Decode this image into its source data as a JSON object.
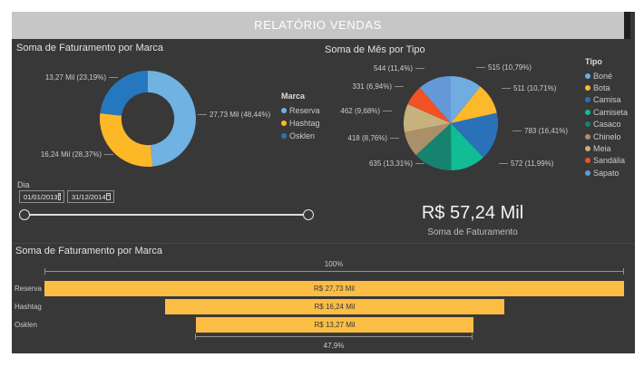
{
  "header": {
    "title": "RELATÓRIO VENDAS"
  },
  "panels": {
    "donut_title": "Soma de Faturamento por Marca",
    "pie_title": "Soma de Mês por Tipo",
    "funnel_title": "Soma de Faturamento por Marca"
  },
  "slicer": {
    "label": "Dia",
    "start_date": "01/01/2013",
    "end_date": "31/12/2014"
  },
  "card": {
    "value": "R$ 57,24 Mil",
    "label": "Soma de Faturamento"
  },
  "funnel_panel": {
    "title": "Soma de Faturamento por Marca",
    "top_percent": "100%",
    "bottom_percent": "47,9%",
    "bars": [
      {
        "label": "Reserva",
        "value": 27.73,
        "value_label": "R$ 27,73 Mil"
      },
      {
        "label": "Hashtag",
        "value": 16.24,
        "value_label": "R$ 16,24 Mil"
      },
      {
        "label": "Osklen",
        "value": 13.27,
        "value_label": "R$ 13,27 Mil"
      }
    ]
  },
  "chart_data": [
    {
      "type": "pie",
      "subtype": "donut",
      "title": "Soma de Faturamento por Marca",
      "legend_title": "Marca",
      "legend_position": "right",
      "categories": [
        "Reserva",
        "Hashtag",
        "Osklen"
      ],
      "values": [
        27.73,
        16.24,
        13.27
      ],
      "value_unit": "Mil (R$)",
      "percents": [
        48.44,
        28.37,
        23.19
      ],
      "labels": [
        "27,73 Mil (48,44%)",
        "16,24 Mil (28,37%)",
        "13,27 Mil (23,19%)"
      ],
      "colors": [
        "#70B2E2",
        "#FCB826",
        "#2678BE"
      ]
    },
    {
      "type": "pie",
      "title": "Soma de Mês por Tipo",
      "legend_title": "Tipo",
      "legend_position": "right",
      "categories": [
        "Boné",
        "Bota",
        "Camisa",
        "Camiseta",
        "Casaco",
        "Chinelo",
        "Meia",
        "Sandália",
        "Sapato"
      ],
      "values": [
        515,
        511,
        783,
        572,
        635,
        418,
        462,
        331,
        544
      ],
      "percents": [
        10.79,
        10.71,
        16.41,
        11.99,
        13.31,
        8.76,
        9.68,
        6.94,
        11.4
      ],
      "labels": [
        "515 (10,79%)",
        "511 (10,71%)",
        "783 (16,41%)",
        "572 (11,99%)",
        "635 (13,31%)",
        "418 (8,76%)",
        "462 (9,68%)",
        "331 (6,94%)",
        "544 (11,4%)"
      ],
      "colors": [
        "#6FACDF",
        "#FCB92C",
        "#2A71BA",
        "#10BD95",
        "#15836D",
        "#AA9069",
        "#C7B17D",
        "#F05226",
        "#6598D8"
      ]
    },
    {
      "type": "bar",
      "subtype": "funnel",
      "title": "Soma de Faturamento por Marca",
      "categories": [
        "Reserva",
        "Hashtag",
        "Osklen"
      ],
      "values": [
        27.73,
        16.24,
        13.27
      ],
      "value_labels": [
        "R$ 27,73 Mil",
        "R$ 16,24 Mil",
        "R$ 13,27 Mil"
      ],
      "annotations": [
        "100%",
        "47,9%"
      ],
      "bar_color": "#FBBD44"
    }
  ]
}
